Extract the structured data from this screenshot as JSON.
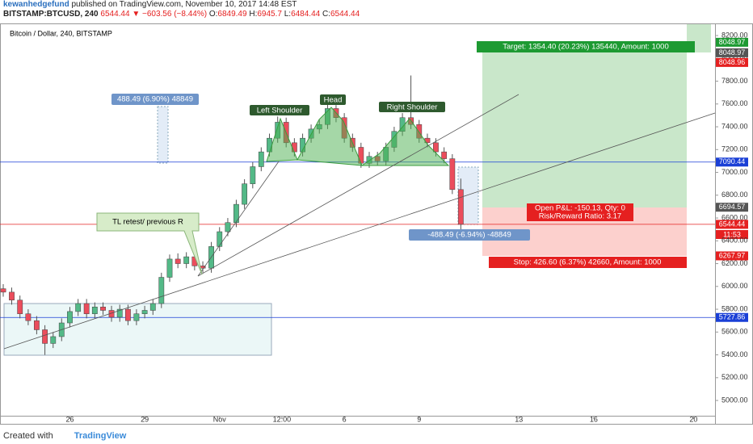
{
  "header": {
    "user": "kewanhedgefund",
    "published": "published on TradingView.com, November 10, 2017 14:48 EST",
    "symbol": "BITSTAMP:BTCUSD, 240",
    "change": "▼ −603.56 (−8.44%)",
    "o": "O:",
    "h": "H:",
    "l": "L:",
    "c": "C:"
  },
  "chart_data": {
    "type": "candlestick",
    "title": "Bitcoin / Dollar, 240, BITSTAMP",
    "x": [
      0.33,
      0.67,
      1,
      1.33,
      1.67,
      2,
      2.33,
      2.67,
      3,
      3.33,
      3.67,
      4,
      4.33,
      4.67,
      5,
      5.33,
      5.67,
      6,
      6.33,
      6.67,
      7,
      7.33,
      7.67,
      8,
      8.33,
      8.67,
      9,
      9.33,
      9.67,
      10,
      10.33,
      10.67,
      11,
      11.33,
      11.67,
      12,
      12.33,
      12.67,
      13,
      13.33,
      13.67,
      14,
      14.33,
      14.67,
      15,
      15.33,
      15.67,
      16,
      16.33,
      16.67,
      17,
      17.33,
      17.67,
      18,
      18.33,
      18.67
    ],
    "open": [
      5980,
      5950,
      5880,
      5760,
      5700,
      5620,
      5500,
      5560,
      5680,
      5780,
      5850,
      5760,
      5820,
      5790,
      5730,
      5800,
      5700,
      5760,
      5790,
      5850,
      6080,
      6240,
      6200,
      6260,
      6180,
      6160,
      6350,
      6480,
      6560,
      6720,
      6900,
      7050,
      7180,
      7300,
      7440,
      7260,
      7180,
      7300,
      7380,
      7420,
      7560,
      7480,
      7300,
      7220,
      7080,
      7140,
      7100,
      7220,
      7360,
      7480,
      7420,
      7300,
      7260,
      7180,
      7120,
      6849.49
    ],
    "high": [
      6020,
      5990,
      5920,
      5800,
      5740,
      5660,
      5600,
      5720,
      5820,
      5890,
      5890,
      5860,
      5860,
      5830,
      5840,
      5840,
      5800,
      5830,
      5890,
      6120,
      6280,
      6290,
      6300,
      6300,
      6220,
      6390,
      6520,
      6600,
      6760,
      6940,
      7090,
      7220,
      7340,
      7490,
      7480,
      7300,
      7340,
      7420,
      7460,
      7600,
      7590,
      7520,
      7340,
      7260,
      7180,
      7180,
      7260,
      7400,
      7520,
      7850,
      7460,
      7340,
      7300,
      7220,
      7160,
      6945.7
    ],
    "low": [
      5910,
      5840,
      5720,
      5660,
      5580,
      5400,
      5460,
      5520,
      5640,
      5740,
      5720,
      5720,
      5750,
      5690,
      5690,
      5660,
      5660,
      5720,
      5750,
      5810,
      6040,
      6160,
      6160,
      6140,
      6120,
      6120,
      6310,
      6440,
      6520,
      6680,
      6860,
      7010,
      7140,
      7260,
      7220,
      7140,
      7140,
      7260,
      7340,
      7380,
      7440,
      7260,
      7180,
      7040,
      7040,
      7060,
      7060,
      7180,
      7320,
      7380,
      7260,
      7220,
      7140,
      7080,
      6810,
      6484.44
    ],
    "close": [
      5950,
      5880,
      5760,
      5700,
      5620,
      5500,
      5560,
      5680,
      5780,
      5850,
      5760,
      5820,
      5790,
      5730,
      5800,
      5700,
      5760,
      5790,
      5850,
      6080,
      6240,
      6200,
      6260,
      6180,
      6160,
      6350,
      6480,
      6560,
      6720,
      6900,
      7050,
      7180,
      7300,
      7440,
      7260,
      7180,
      7300,
      7380,
      7420,
      7560,
      7480,
      7300,
      7220,
      7080,
      7140,
      7100,
      7220,
      7360,
      7480,
      7420,
      7300,
      7260,
      7180,
      7120,
      6849.49,
      6544.44
    ],
    "up_color": "#53b987",
    "down_color": "#eb4d5c",
    "xlim": [
      0.2,
      28.86
    ],
    "xticks": [
      {
        "value": 3,
        "label": "26"
      },
      {
        "value": 6,
        "label": "29"
      },
      {
        "value": 9,
        "label": "Nov"
      },
      {
        "value": 11.5,
        "label": "12:00"
      },
      {
        "value": 14,
        "label": "6"
      },
      {
        "value": 17,
        "label": "9"
      },
      {
        "value": 21,
        "label": "13"
      },
      {
        "value": 24,
        "label": "16"
      },
      {
        "value": 28,
        "label": "20"
      }
    ],
    "ylim": [
      4866,
      8264
    ],
    "yticks": [
      {
        "value": 5000,
        "label": "5000.00"
      },
      {
        "value": 5200,
        "label": "5200.00"
      },
      {
        "value": 5400,
        "label": "5400.00"
      },
      {
        "value": 5600,
        "label": "5600.00"
      },
      {
        "value": 5800,
        "label": "5800.00"
      },
      {
        "value": 6000,
        "label": "6000.00"
      },
      {
        "value": 6200,
        "label": "6200.00"
      },
      {
        "value": 6400,
        "label": "6400.00"
      },
      {
        "value": 6600,
        "label": "6600.00"
      },
      {
        "value": 6800,
        "label": "6800.00"
      },
      {
        "value": 7000,
        "label": "7000.00"
      },
      {
        "value": 7200,
        "label": "7200.00"
      },
      {
        "value": 7400,
        "label": "7400.00"
      },
      {
        "value": 7600,
        "label": "7600.00"
      },
      {
        "value": 7800,
        "label": "7800.00"
      },
      {
        "value": 8000,
        "label": "8000.00"
      },
      {
        "value": 8200,
        "label": "8200.00"
      }
    ],
    "price_labels": [
      8048.97,
      8048.97,
      8048.96,
      7090.44,
      6694.57,
      6267.97,
      5727.86
    ],
    "price_label_colors": [
      "#1d9a32",
      "#555555",
      "#e52020",
      "#1a3fd6",
      "#555555",
      "#e52020",
      "#1a3fd6"
    ],
    "annotations": {
      "measure_up": "488.49 (6.90%) 48849",
      "left_shoulder": "Left Shoulder",
      "head": "Head",
      "right_shoulder": "Right Shoulder",
      "retest": "TL retest/ previous R",
      "target": "Target: 1354.40 (20.23%) 135440, Amount: 1000",
      "pnl": "Open P&L: -150.13, Qty: 0",
      "rr": "Risk/Reward Ratio: 3.17",
      "stop": "Stop: 426.60 (6.37%) 42660, Amount: 1000",
      "measure_down": "-488.49 (-6.94%) -48849",
      "countdown": "11:53"
    }
  },
  "footer": {
    "created": "Created with",
    "brand": "TradingView"
  }
}
